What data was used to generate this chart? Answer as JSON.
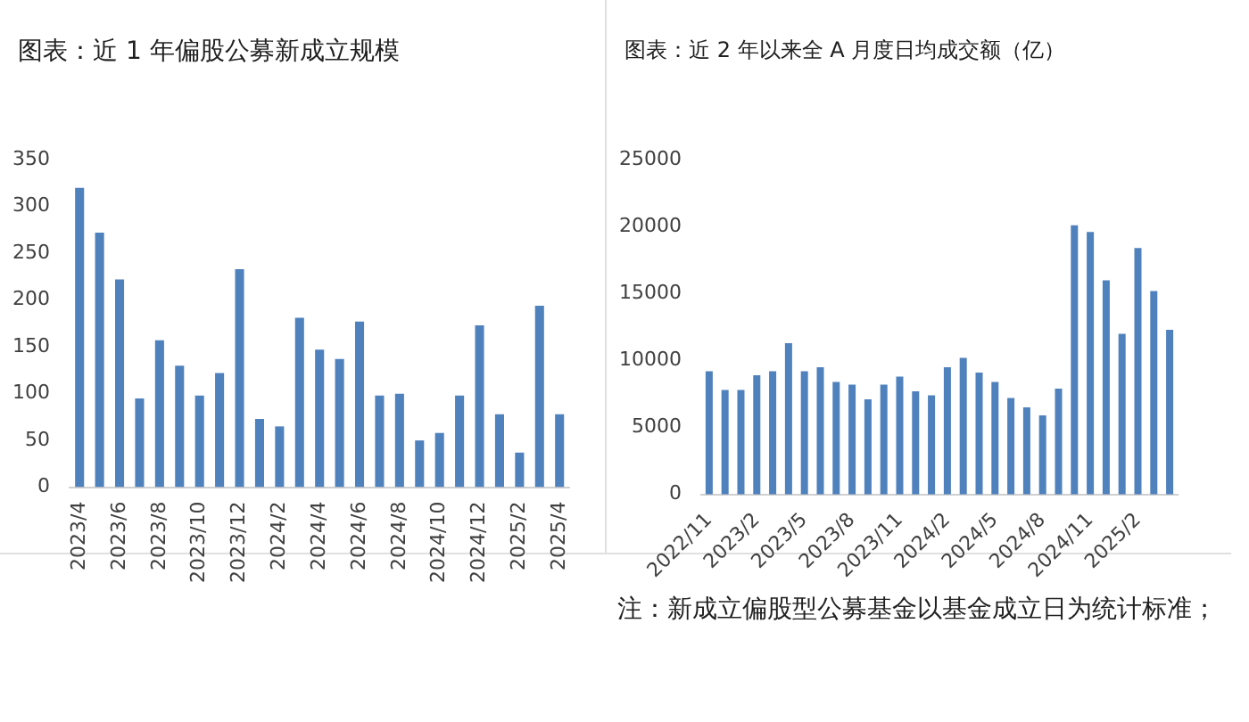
{
  "chart_data": [
    {
      "type": "bar",
      "title": "图表：近 1 年偏股公募新成立规模",
      "categories": [
        "2023/4",
        null,
        "2023/6",
        null,
        "2023/8",
        null,
        "2023/10",
        null,
        "2023/12",
        null,
        "2024/2",
        null,
        "2024/4",
        null,
        "2024/6",
        null,
        "2024/8",
        null,
        "2024/10",
        null,
        "2024/12",
        null,
        "2025/2",
        null,
        "2025/4"
      ],
      "values": [
        320,
        272,
        222,
        95,
        157,
        130,
        98,
        122,
        233,
        73,
        65,
        181,
        147,
        137,
        177,
        98,
        100,
        50,
        58,
        98,
        173,
        78,
        37,
        194,
        78
      ],
      "color": "#4f81bd",
      "ylim": [
        0,
        350
      ],
      "yticks": [
        0,
        50,
        100,
        150,
        200,
        250,
        300,
        350
      ],
      "grid": false,
      "legend": false
    },
    {
      "type": "bar",
      "title": "图表：近 2 年以来全 A 月度日均成交额（亿）",
      "categories": [
        "2022/11",
        null,
        null,
        "2023/2",
        null,
        null,
        "2023/5",
        null,
        null,
        "2023/8",
        null,
        null,
        "2023/11",
        null,
        null,
        "2024/2",
        null,
        null,
        "2024/5",
        null,
        null,
        "2024/8",
        null,
        null,
        "2024/11",
        null,
        null,
        "2025/2",
        null,
        null
      ],
      "values": [
        9200,
        7800,
        7800,
        8900,
        9200,
        11300,
        9200,
        9500,
        8400,
        8200,
        7100,
        8200,
        8800,
        7700,
        7400,
        9500,
        10200,
        9100,
        8400,
        7200,
        6500,
        5900,
        7900,
        20100,
        19600,
        16000,
        12000,
        18400,
        15200,
        12300
      ],
      "color": "#4f81bd",
      "ylim": [
        0,
        25000
      ],
      "yticks": [
        0,
        5000,
        10000,
        15000,
        20000,
        25000
      ],
      "grid": false,
      "legend": false,
      "annotations": [
        "注：新成立偏股型公募基金以基金成立日为统计标准；"
      ]
    }
  ]
}
